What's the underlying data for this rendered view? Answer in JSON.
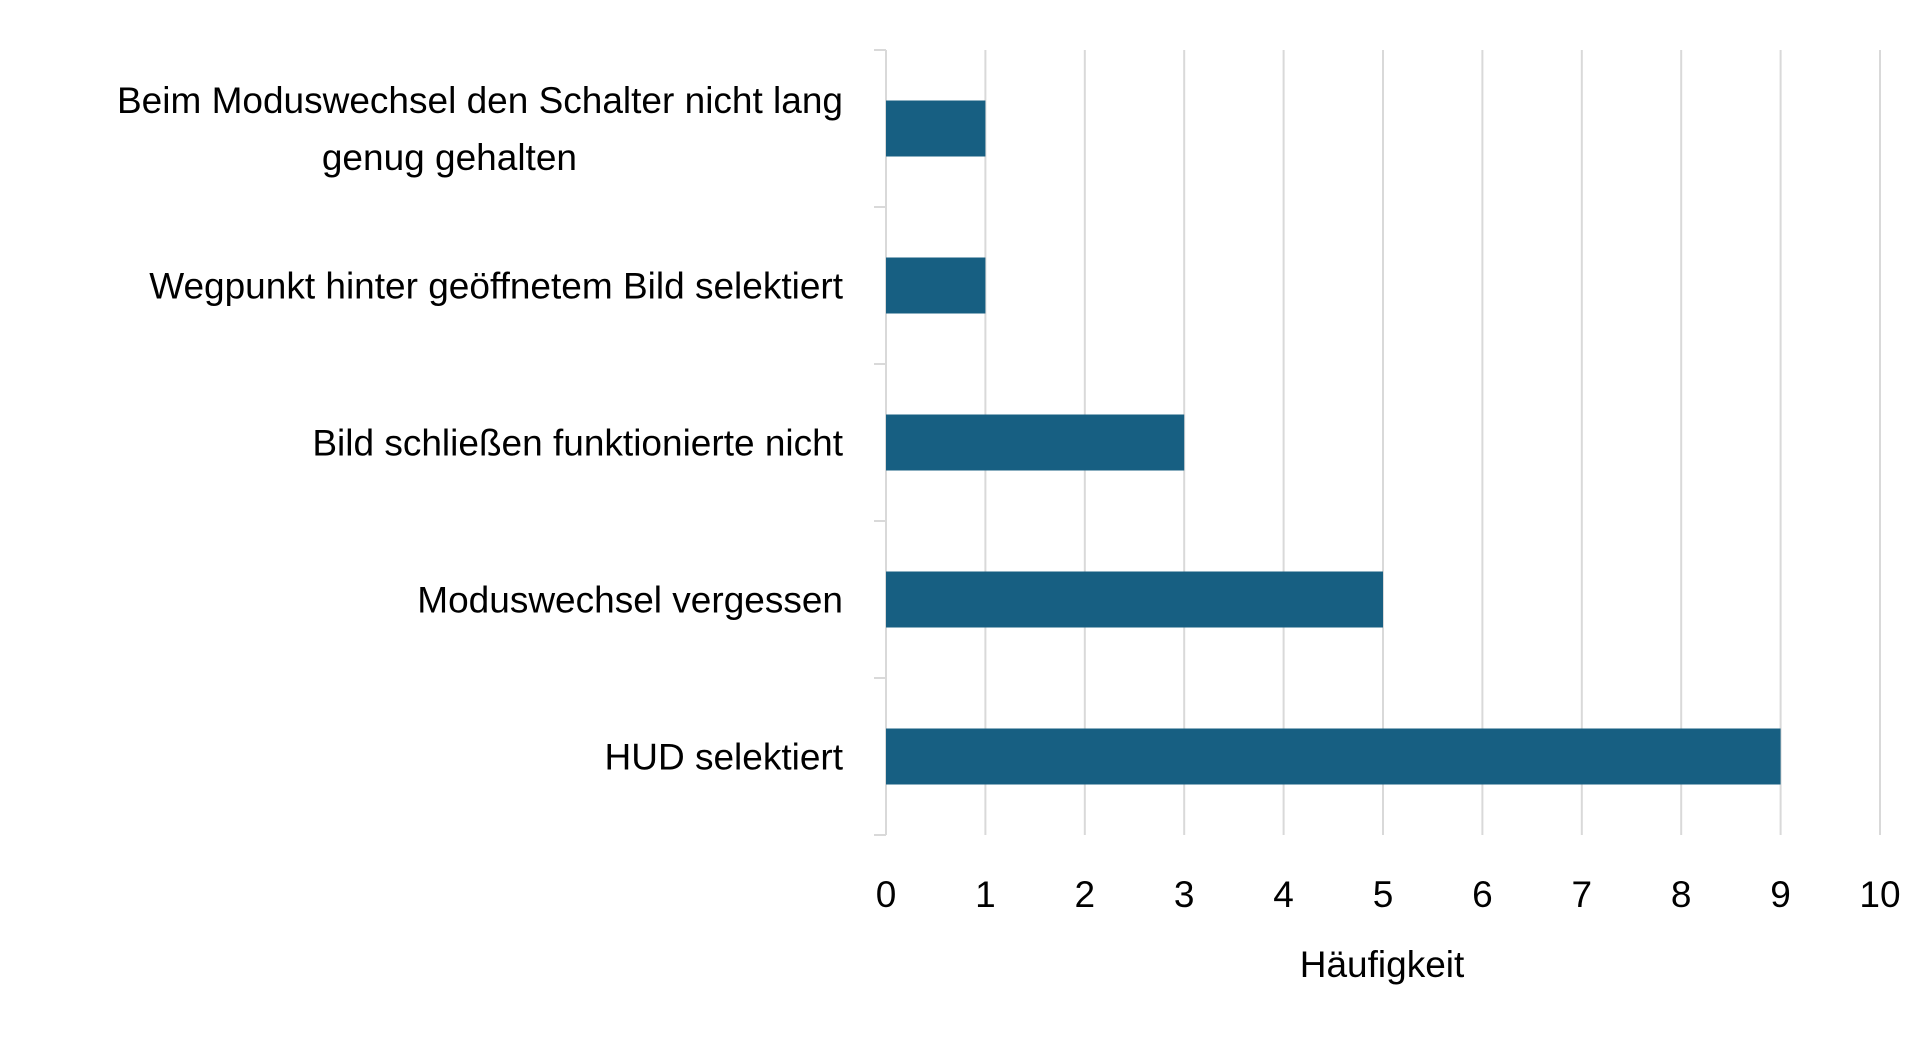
{
  "chart_data": {
    "type": "bar",
    "orientation": "horizontal",
    "categories": [
      [
        "Beim Moduswechsel den Schalter nicht lang",
        "genug gehalten"
      ],
      [
        "Wegpunkt hinter geöffnetem Bild selektiert"
      ],
      [
        "Bild schließen funktionierte nicht"
      ],
      [
        "Moduswechsel vergessen"
      ],
      [
        "HUD selektiert"
      ]
    ],
    "values": [
      1,
      1,
      3,
      5,
      9
    ],
    "xlabel": "Häufigkeit",
    "ylabel": "",
    "xlim": [
      0,
      10
    ],
    "xticks": [
      "0",
      "1",
      "2",
      "3",
      "4",
      "5",
      "6",
      "7",
      "8",
      "9",
      "10"
    ],
    "grid": "vertical",
    "legend": "none",
    "colors": {
      "bar": "#175f82",
      "grid": "#d9d9d9",
      "axis": "#d9d9d9"
    }
  }
}
